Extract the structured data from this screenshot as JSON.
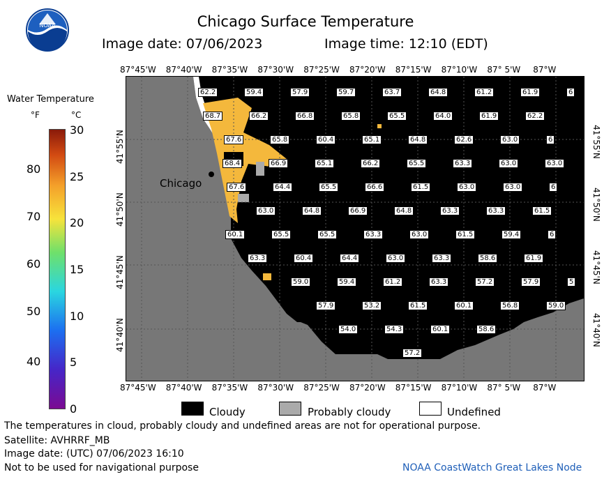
{
  "header": {
    "title": "Chicago Surface Temperature",
    "image_date": "Image date: 07/06/2023",
    "image_time": "Image time: 12:10 (EDT)"
  },
  "colorbar": {
    "title": "Water Temperature",
    "unit_f": "°F",
    "unit_c": "°C",
    "f_ticks": [
      "80",
      "70",
      "60",
      "50",
      "40"
    ],
    "c_ticks": [
      "30",
      "25",
      "20",
      "15",
      "10",
      "5",
      "0"
    ]
  },
  "map": {
    "lon_labels": [
      "87°45'W",
      "87°40'W",
      "87°35'W",
      "87°30'W",
      "87°25'W",
      "87°20'W",
      "87°15'W",
      "87°10'W",
      "87° 5'W",
      "87°W"
    ],
    "lat_labels": [
      "41°55'N",
      "41°50'N",
      "41°45'N",
      "41°40'N"
    ],
    "city_label": "Chicago",
    "colors": {
      "land": "#777777",
      "water_cloud": "#000000",
      "warm": "#f4b83c"
    },
    "temps": [
      [
        "62.2",
        "59.4",
        "57.9",
        "59.7",
        "63.7",
        "64.8",
        "61.2",
        "61.9",
        "6"
      ],
      [
        "68.7",
        "66.2",
        "66.8",
        "65.8",
        "65.5",
        "64.0",
        "61.9",
        "62.2"
      ],
      [
        "67.6",
        "65.8",
        "60.4",
        "65.1",
        "64.8",
        "62.6",
        "63.0",
        "6"
      ],
      [
        "68.4",
        "66.9",
        "65.1",
        "66.2",
        "65.5",
        "63.3",
        "63.0",
        "63.0"
      ],
      [
        "67.6",
        "64.4",
        "65.5",
        "66.6",
        "61.5",
        "63.0",
        "63.0",
        "6"
      ],
      [
        "63.0",
        "64.8",
        "66.9",
        "64.8",
        "63.3",
        "63.3",
        "61.5"
      ],
      [
        "60.1",
        "65.5",
        "65.5",
        "63.3",
        "63.0",
        "61.5",
        "59.4",
        "6"
      ],
      [
        "63.3",
        "60.4",
        "64.4",
        "63.0",
        "63.3",
        "58.6",
        "61.9"
      ],
      [
        "59.0",
        "59.4",
        "61.2",
        "63.3",
        "57.2",
        "57.9",
        "5"
      ],
      [
        "57.9",
        "53.2",
        "61.5",
        "60.1",
        "56.8",
        "59.0"
      ],
      [
        "54.0",
        "54.3",
        "60.1",
        "58.6"
      ],
      [
        "57.2"
      ]
    ]
  },
  "legend": {
    "cloudy": "Cloudy",
    "probably_cloudy": "Probably cloudy",
    "undefined": "Undefined"
  },
  "notes": {
    "line1": "The temperatures in cloud, probably cloudy and undefined areas are not for operational purpose.",
    "line2": "Satellite: AVHRRF_MB",
    "line3": "Image date: (UTC) 07/06/2023  16:10",
    "line4": "Not to be used for navigational purpose",
    "credit": "NOAA CoastWatch Great Lakes Node"
  },
  "logo_text": "NOAA"
}
